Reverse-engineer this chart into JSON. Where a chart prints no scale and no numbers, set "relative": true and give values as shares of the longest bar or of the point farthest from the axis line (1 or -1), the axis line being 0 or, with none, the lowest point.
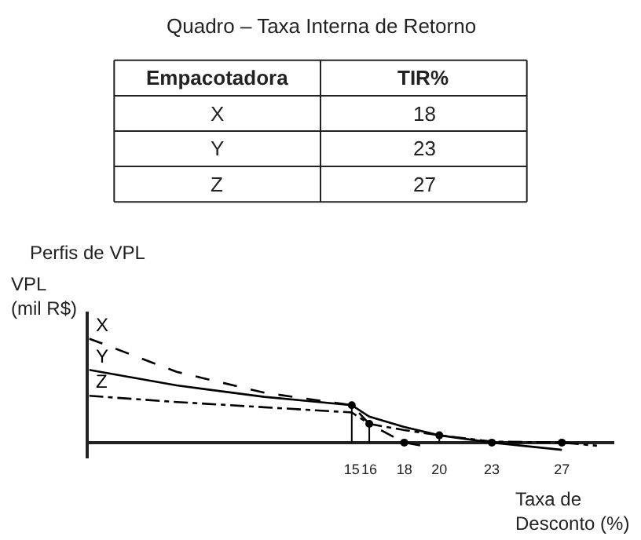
{
  "chart_data": [
    {
      "type": "other",
      "title": "Quadro – Taxa Interna de Retorno",
      "annotations": [
        "Empacotadora",
        "TIR%",
        "X",
        "18",
        "Y",
        "23",
        "Z",
        "27"
      ]
    },
    {
      "type": "line",
      "title": "Perfis de VPL",
      "ylabel": "VPL\n(mil R$)",
      "xlabel": "Taxa de\nDesconto (%)",
      "relative": true,
      "xlim": [
        0,
        30
      ],
      "xticks": [
        15,
        16,
        18,
        20,
        23,
        27
      ],
      "series": [
        {
          "name": "X",
          "color": "#000000",
          "line_style": "dashed",
          "marker": "none",
          "x": [
            0,
            5,
            10,
            15,
            16,
            18,
            19
          ],
          "values": [
            1,
            0.68,
            0.48,
            0.36,
            0.18,
            0,
            -0.03
          ]
        },
        {
          "name": "Y",
          "color": "#000000",
          "line_style": "solid",
          "marker": "none",
          "x": [
            0,
            5,
            10,
            15,
            16,
            18,
            20,
            23,
            27
          ],
          "values": [
            0.7,
            0.55,
            0.44,
            0.36,
            0.25,
            0.15,
            0.07,
            0,
            -0.07
          ]
        },
        {
          "name": "Z",
          "color": "#000000",
          "line_style": "dotted",
          "marker": "none",
          "x": [
            0,
            5,
            10,
            15,
            16,
            18,
            20,
            23,
            27,
            29
          ],
          "values": [
            0.45,
            0.39,
            0.34,
            0.29,
            0.18,
            0.12,
            0.07,
            0.01,
            0,
            -0.03
          ]
        },
        {
          "type": "lollipop",
          "color": "#000000",
          "marker": "circle",
          "x": [
            15,
            16,
            18,
            20,
            23,
            27
          ],
          "values": [
            0.36,
            0.18,
            0,
            0.07,
            0,
            0
          ]
        }
      ]
    }
  ]
}
